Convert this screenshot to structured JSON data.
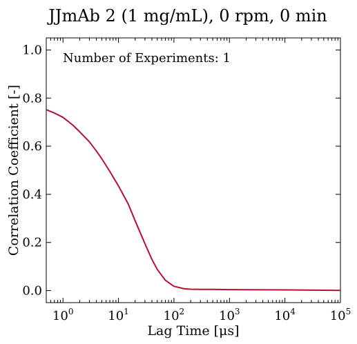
{
  "chart_data": {
    "type": "line",
    "title": "JJmAb 2 (1 mg/mL), 0 rpm, 0 min",
    "xlabel": "Lag Time [μs]",
    "ylabel": "Correlation Coefficient [-]",
    "xscale": "log",
    "xlim": [
      0.5,
      100000
    ],
    "ylim": [
      -0.05,
      1.05
    ],
    "grid": false,
    "annotation": "Number of Experiments: 1",
    "x_ticks": [
      {
        "value": 1,
        "base": "10",
        "exp": "0"
      },
      {
        "value": 10,
        "base": "10",
        "exp": "1"
      },
      {
        "value": 100,
        "base": "10",
        "exp": "2"
      },
      {
        "value": 1000,
        "base": "10",
        "exp": "3"
      },
      {
        "value": 10000,
        "base": "10",
        "exp": "4"
      },
      {
        "value": 100000,
        "base": "10",
        "exp": "5"
      }
    ],
    "y_ticks": [
      {
        "value": 0.0,
        "label": "0.0"
      },
      {
        "value": 0.2,
        "label": "0.2"
      },
      {
        "value": 0.4,
        "label": "0.4"
      },
      {
        "value": 0.6,
        "label": "0.6"
      },
      {
        "value": 0.8,
        "label": "0.8"
      },
      {
        "value": 1.0,
        "label": "1.0"
      }
    ],
    "series": [
      {
        "color": "#b5102f",
        "x": [
          0.5,
          0.7,
          1,
          1.5,
          2,
          3,
          4,
          5,
          7,
          10,
          15,
          20,
          30,
          40,
          50,
          70,
          100,
          150,
          200,
          300,
          500,
          1000,
          10000,
          100000
        ],
        "y": [
          0.752,
          0.738,
          0.72,
          0.688,
          0.66,
          0.618,
          0.58,
          0.548,
          0.495,
          0.435,
          0.36,
          0.29,
          0.195,
          0.13,
          0.088,
          0.043,
          0.018,
          0.008,
          0.006,
          0.005,
          0.005,
          0.004,
          0.003,
          0.001
        ]
      }
    ]
  }
}
